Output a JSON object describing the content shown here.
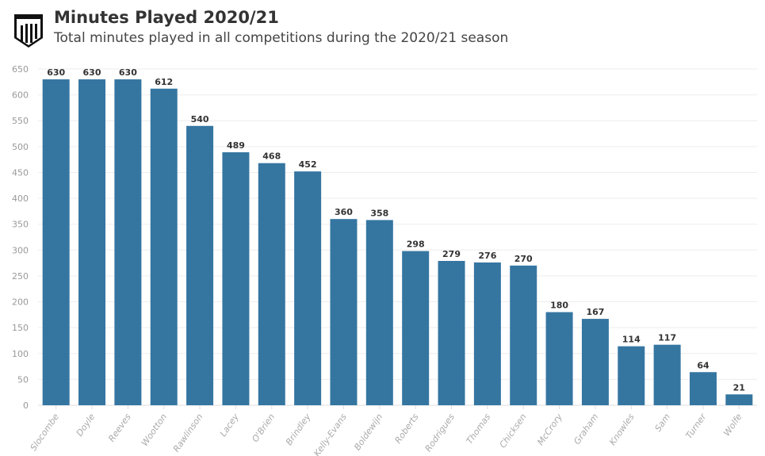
{
  "header": {
    "title": "Minutes Played 2020/21",
    "subtitle": "Total minutes played in all competitions during the 2020/21 season"
  },
  "chart_data": {
    "type": "bar",
    "title": "Minutes Played 2020/21",
    "subtitle": "Total minutes played in all competitions during the 2020/21 season",
    "xlabel": "",
    "ylabel": "",
    "ylim": [
      0,
      650
    ],
    "yticks": [
      0,
      50,
      100,
      150,
      200,
      250,
      300,
      350,
      400,
      450,
      500,
      550,
      600,
      650
    ],
    "grid": true,
    "color": "#3576a1",
    "categories": [
      "Slocombe",
      "Doyle",
      "Reeves",
      "Wootton",
      "Rawlinson",
      "Lacey",
      "O'Brien",
      "Brindley",
      "Kelly-Evans",
      "Boldewijn",
      "Roberts",
      "Rodrigues",
      "Thomas",
      "Chicksen",
      "McCrory",
      "Graham",
      "Knowles",
      "Sam",
      "Turner",
      "Wolfe"
    ],
    "values": [
      630,
      630,
      630,
      612,
      540,
      489,
      468,
      452,
      360,
      358,
      298,
      279,
      276,
      270,
      180,
      167,
      114,
      117,
      64,
      21
    ]
  }
}
